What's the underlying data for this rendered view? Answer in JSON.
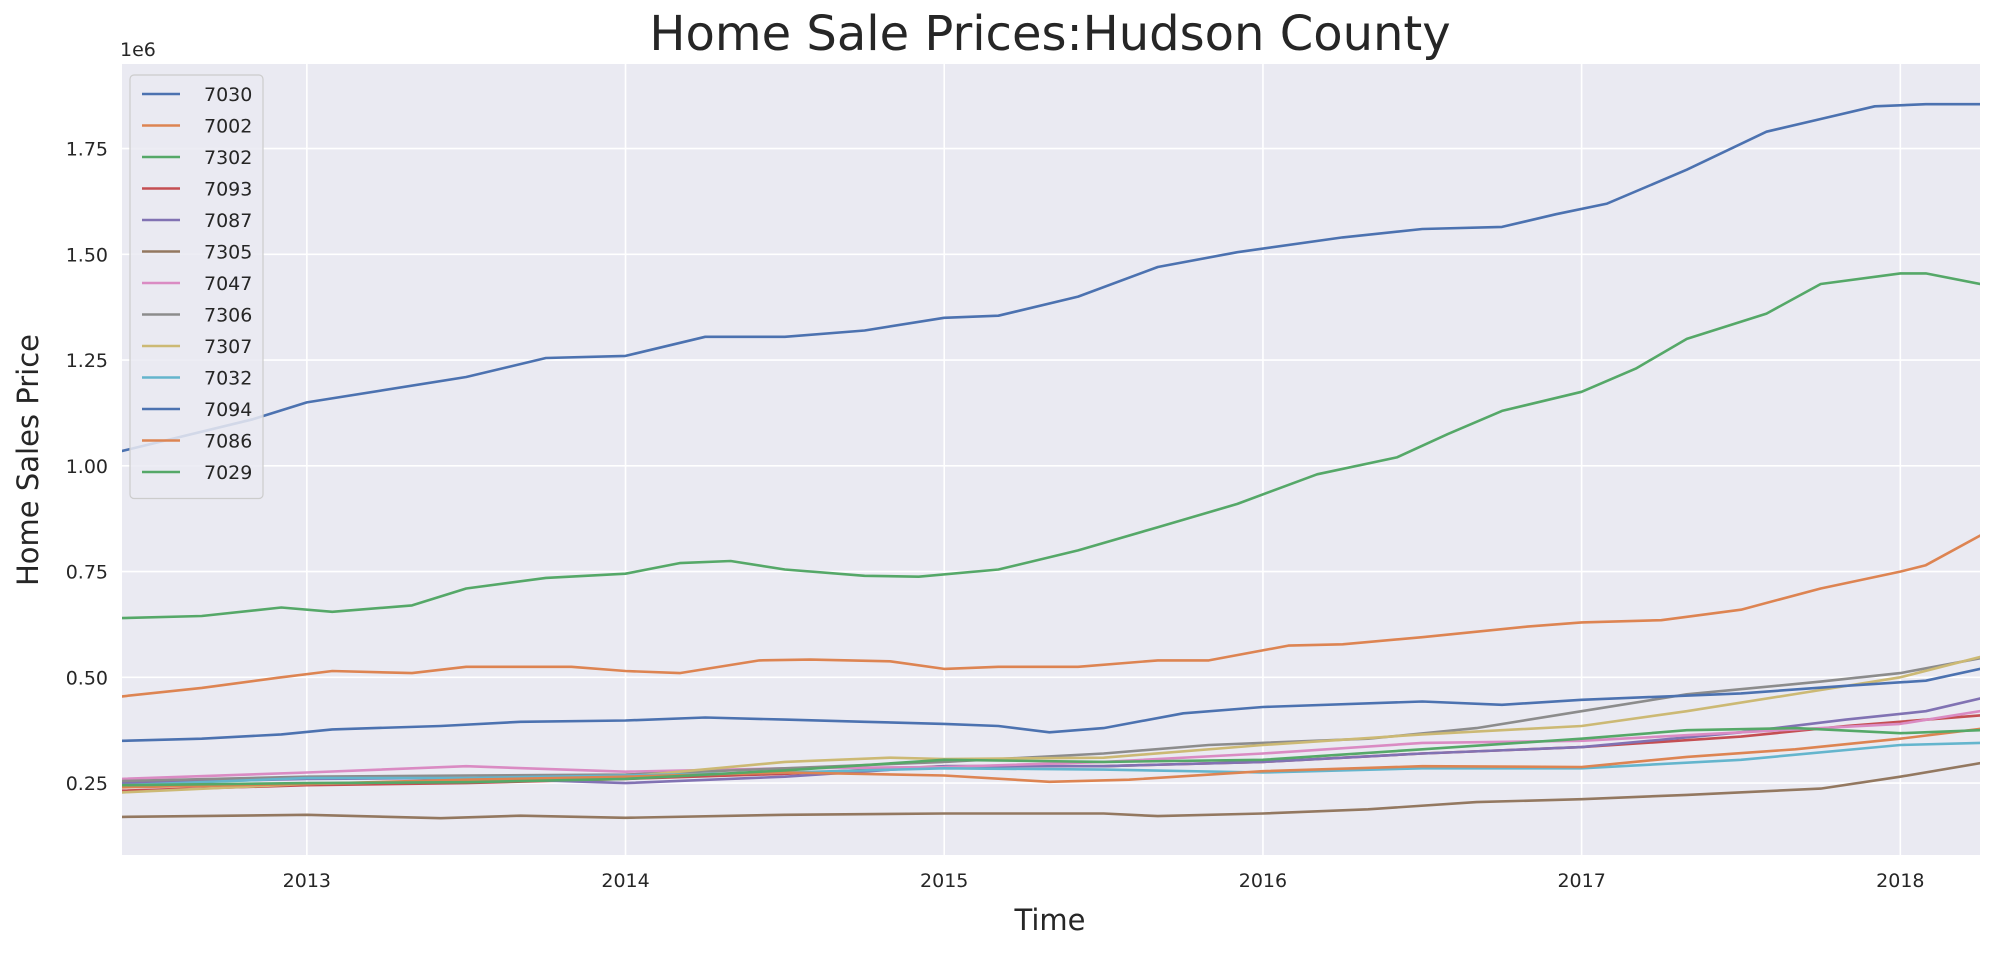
{
  "chart_data": {
    "type": "line",
    "title": "Home Sale Prices:Hudson County",
    "xlabel": "Time",
    "ylabel": "Home Sales Price",
    "y_offset_label": "1e6",
    "xlim": [
      2012.42,
      2018.25
    ],
    "ylim": [
      80000,
      1950000
    ],
    "x_ticks": [
      2013,
      2014,
      2015,
      2016,
      2017,
      2018
    ],
    "x_tick_labels": [
      "2013",
      "2014",
      "2015",
      "2016",
      "2017",
      "2018"
    ],
    "y_ticks": [
      250000,
      500000,
      750000,
      1000000,
      1250000,
      1500000,
      1750000
    ],
    "y_tick_labels": [
      "0.25",
      "0.50",
      "0.75",
      "1.00",
      "1.25",
      "1.50",
      "1.75"
    ],
    "grid": true,
    "legend_position": "top-left",
    "plot_background": "#eaeaf2",
    "series": [
      {
        "name": "7030",
        "color": "#4c72b0",
        "points": [
          [
            2012.42,
            1035000
          ],
          [
            2012.83,
            1110000
          ],
          [
            2013.0,
            1150000
          ],
          [
            2013.5,
            1210000
          ],
          [
            2013.75,
            1255000
          ],
          [
            2014.0,
            1260000
          ],
          [
            2014.25,
            1305000
          ],
          [
            2014.5,
            1305000
          ],
          [
            2014.75,
            1320000
          ],
          [
            2015.0,
            1350000
          ],
          [
            2015.17,
            1355000
          ],
          [
            2015.42,
            1400000
          ],
          [
            2015.67,
            1470000
          ],
          [
            2015.92,
            1505000
          ],
          [
            2016.25,
            1540000
          ],
          [
            2016.5,
            1560000
          ],
          [
            2016.75,
            1565000
          ],
          [
            2016.92,
            1595000
          ],
          [
            2017.08,
            1620000
          ],
          [
            2017.33,
            1700000
          ],
          [
            2017.58,
            1790000
          ],
          [
            2017.75,
            1820000
          ],
          [
            2017.92,
            1850000
          ],
          [
            2018.08,
            1855000
          ],
          [
            2018.25,
            1855000
          ]
        ]
      },
      {
        "name": "7002",
        "color": "#dd8452",
        "points": [
          [
            2012.42,
            455000
          ],
          [
            2012.67,
            475000
          ],
          [
            2012.92,
            500000
          ],
          [
            2013.08,
            515000
          ],
          [
            2013.33,
            510000
          ],
          [
            2013.5,
            525000
          ],
          [
            2013.83,
            525000
          ],
          [
            2014.0,
            515000
          ],
          [
            2014.17,
            510000
          ],
          [
            2014.42,
            540000
          ],
          [
            2014.58,
            542000
          ],
          [
            2014.83,
            538000
          ],
          [
            2015.0,
            520000
          ],
          [
            2015.17,
            525000
          ],
          [
            2015.42,
            525000
          ],
          [
            2015.67,
            540000
          ],
          [
            2015.83,
            540000
          ],
          [
            2016.08,
            575000
          ],
          [
            2016.25,
            578000
          ],
          [
            2016.5,
            595000
          ],
          [
            2016.83,
            620000
          ],
          [
            2017.0,
            630000
          ],
          [
            2017.25,
            635000
          ],
          [
            2017.5,
            660000
          ],
          [
            2017.75,
            710000
          ],
          [
            2018.0,
            750000
          ],
          [
            2018.08,
            765000
          ],
          [
            2018.25,
            835000
          ]
        ]
      },
      {
        "name": "7302",
        "color": "#55a868",
        "points": [
          [
            2012.42,
            640000
          ],
          [
            2012.67,
            645000
          ],
          [
            2012.92,
            665000
          ],
          [
            2013.08,
            655000
          ],
          [
            2013.33,
            670000
          ],
          [
            2013.5,
            710000
          ],
          [
            2013.75,
            735000
          ],
          [
            2014.0,
            745000
          ],
          [
            2014.17,
            770000
          ],
          [
            2014.33,
            775000
          ],
          [
            2014.5,
            755000
          ],
          [
            2014.75,
            740000
          ],
          [
            2014.92,
            738000
          ],
          [
            2015.17,
            755000
          ],
          [
            2015.42,
            800000
          ],
          [
            2015.67,
            855000
          ],
          [
            2015.92,
            910000
          ],
          [
            2016.17,
            980000
          ],
          [
            2016.42,
            1020000
          ],
          [
            2016.58,
            1075000
          ],
          [
            2016.75,
            1130000
          ],
          [
            2017.0,
            1175000
          ],
          [
            2017.17,
            1230000
          ],
          [
            2017.33,
            1300000
          ],
          [
            2017.58,
            1360000
          ],
          [
            2017.75,
            1430000
          ],
          [
            2018.0,
            1455000
          ],
          [
            2018.08,
            1455000
          ],
          [
            2018.25,
            1430000
          ]
        ]
      },
      {
        "name": "7093",
        "color": "#c44e52",
        "points": [
          [
            2012.42,
            232000
          ],
          [
            2013.0,
            245000
          ],
          [
            2013.5,
            250000
          ],
          [
            2014.0,
            260000
          ],
          [
            2014.5,
            272000
          ],
          [
            2015.0,
            290000
          ],
          [
            2015.5,
            290000
          ],
          [
            2016.0,
            300000
          ],
          [
            2016.5,
            320000
          ],
          [
            2017.0,
            335000
          ],
          [
            2017.5,
            360000
          ],
          [
            2017.83,
            385000
          ],
          [
            2018.25,
            410000
          ]
        ]
      },
      {
        "name": "7087",
        "color": "#8172b3",
        "points": [
          [
            2012.42,
            250000
          ],
          [
            2013.0,
            260000
          ],
          [
            2013.5,
            262000
          ],
          [
            2014.0,
            250000
          ],
          [
            2014.5,
            265000
          ],
          [
            2015.0,
            290000
          ],
          [
            2015.5,
            290000
          ],
          [
            2016.0,
            300000
          ],
          [
            2016.5,
            320000
          ],
          [
            2017.0,
            335000
          ],
          [
            2017.5,
            370000
          ],
          [
            2017.83,
            400000
          ],
          [
            2018.08,
            420000
          ],
          [
            2018.25,
            450000
          ]
        ]
      },
      {
        "name": "7305",
        "color": "#937860",
        "points": [
          [
            2012.42,
            170000
          ],
          [
            2013.0,
            175000
          ],
          [
            2013.42,
            167000
          ],
          [
            2013.67,
            173000
          ],
          [
            2014.0,
            168000
          ],
          [
            2014.5,
            175000
          ],
          [
            2015.0,
            178000
          ],
          [
            2015.5,
            178000
          ],
          [
            2015.67,
            172000
          ],
          [
            2016.0,
            178000
          ],
          [
            2016.33,
            188000
          ],
          [
            2016.67,
            205000
          ],
          [
            2017.0,
            212000
          ],
          [
            2017.33,
            222000
          ],
          [
            2017.75,
            237000
          ],
          [
            2018.0,
            265000
          ],
          [
            2018.25,
            297000
          ]
        ]
      },
      {
        "name": "7047",
        "color": "#da8bc3",
        "points": [
          [
            2012.42,
            260000
          ],
          [
            2013.0,
            275000
          ],
          [
            2013.5,
            290000
          ],
          [
            2014.0,
            277000
          ],
          [
            2014.5,
            285000
          ],
          [
            2015.0,
            288000
          ],
          [
            2015.5,
            300000
          ],
          [
            2016.0,
            320000
          ],
          [
            2016.5,
            345000
          ],
          [
            2017.0,
            350000
          ],
          [
            2017.5,
            370000
          ],
          [
            2018.0,
            390000
          ],
          [
            2018.25,
            420000
          ]
        ]
      },
      {
        "name": "7306",
        "color": "#8c8c8c",
        "points": [
          [
            2012.42,
            255000
          ],
          [
            2013.0,
            265000
          ],
          [
            2013.5,
            268000
          ],
          [
            2014.0,
            270000
          ],
          [
            2014.5,
            285000
          ],
          [
            2015.0,
            300000
          ],
          [
            2015.5,
            320000
          ],
          [
            2015.83,
            340000
          ],
          [
            2016.33,
            355000
          ],
          [
            2016.67,
            380000
          ],
          [
            2017.0,
            420000
          ],
          [
            2017.33,
            460000
          ],
          [
            2017.75,
            490000
          ],
          [
            2018.0,
            510000
          ],
          [
            2018.25,
            545000
          ]
        ]
      },
      {
        "name": "7307",
        "color": "#ccb974",
        "points": [
          [
            2012.42,
            228000
          ],
          [
            2013.0,
            248000
          ],
          [
            2013.5,
            255000
          ],
          [
            2014.0,
            265000
          ],
          [
            2014.5,
            300000
          ],
          [
            2014.83,
            310000
          ],
          [
            2015.0,
            307000
          ],
          [
            2015.5,
            310000
          ],
          [
            2016.0,
            340000
          ],
          [
            2016.5,
            365000
          ],
          [
            2017.0,
            385000
          ],
          [
            2017.33,
            420000
          ],
          [
            2017.75,
            470000
          ],
          [
            2018.0,
            500000
          ],
          [
            2018.25,
            548000
          ]
        ]
      },
      {
        "name": "7032",
        "color": "#64b5cd",
        "points": [
          [
            2012.42,
            245000
          ],
          [
            2013.0,
            262000
          ],
          [
            2013.5,
            262000
          ],
          [
            2014.0,
            268000
          ],
          [
            2014.5,
            275000
          ],
          [
            2015.0,
            285000
          ],
          [
            2015.5,
            282000
          ],
          [
            2016.0,
            275000
          ],
          [
            2016.5,
            285000
          ],
          [
            2017.0,
            285000
          ],
          [
            2017.5,
            305000
          ],
          [
            2018.0,
            340000
          ],
          [
            2018.25,
            345000
          ]
        ]
      },
      {
        "name": "7094",
        "color": "#4c72b0",
        "points": [
          [
            2012.42,
            350000
          ],
          [
            2012.67,
            355000
          ],
          [
            2012.92,
            365000
          ],
          [
            2013.08,
            377000
          ],
          [
            2013.42,
            385000
          ],
          [
            2013.67,
            395000
          ],
          [
            2014.0,
            398000
          ],
          [
            2014.25,
            405000
          ],
          [
            2014.5,
            400000
          ],
          [
            2014.75,
            395000
          ],
          [
            2015.0,
            390000
          ],
          [
            2015.17,
            385000
          ],
          [
            2015.33,
            370000
          ],
          [
            2015.5,
            380000
          ],
          [
            2015.75,
            415000
          ],
          [
            2016.0,
            430000
          ],
          [
            2016.5,
            443000
          ],
          [
            2016.75,
            435000
          ],
          [
            2017.0,
            447000
          ],
          [
            2017.5,
            462000
          ],
          [
            2017.83,
            480000
          ],
          [
            2018.08,
            492000
          ],
          [
            2018.25,
            520000
          ]
        ]
      },
      {
        "name": "7086",
        "color": "#dd8452",
        "points": [
          [
            2012.42,
            240000
          ],
          [
            2013.0,
            248000
          ],
          [
            2013.5,
            258000
          ],
          [
            2014.0,
            265000
          ],
          [
            2014.5,
            275000
          ],
          [
            2015.0,
            268000
          ],
          [
            2015.33,
            253000
          ],
          [
            2015.58,
            258000
          ],
          [
            2016.0,
            278000
          ],
          [
            2016.5,
            290000
          ],
          [
            2017.0,
            288000
          ],
          [
            2017.33,
            312000
          ],
          [
            2017.67,
            330000
          ],
          [
            2018.0,
            355000
          ],
          [
            2018.25,
            378000
          ]
        ]
      },
      {
        "name": "7029",
        "color": "#55a868",
        "points": [
          [
            2012.42,
            245000
          ],
          [
            2013.0,
            250000
          ],
          [
            2013.5,
            252000
          ],
          [
            2014.0,
            260000
          ],
          [
            2014.5,
            280000
          ],
          [
            2015.0,
            305000
          ],
          [
            2015.5,
            300000
          ],
          [
            2016.0,
            305000
          ],
          [
            2016.5,
            330000
          ],
          [
            2017.0,
            355000
          ],
          [
            2017.33,
            375000
          ],
          [
            2017.67,
            380000
          ],
          [
            2018.0,
            368000
          ],
          [
            2018.25,
            375000
          ]
        ]
      }
    ]
  }
}
